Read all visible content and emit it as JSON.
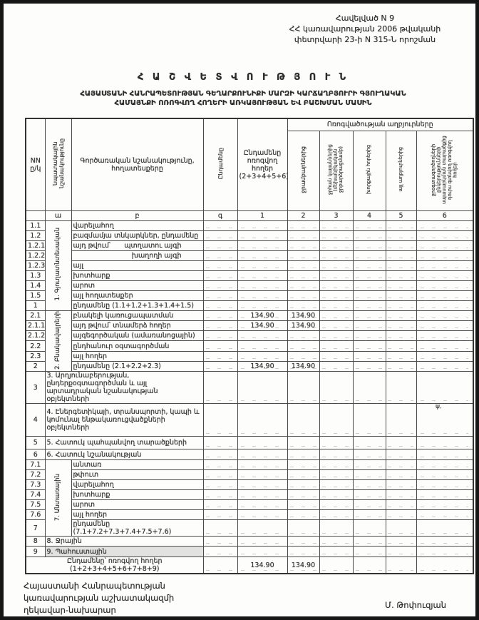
{
  "appendix": {
    "line1": "Հավելված N 9",
    "line2": "ՀՀ կառավարության 2006 թվականի",
    "line3": "փետրվարի 23-ի N 315-Ն որոշման"
  },
  "title": {
    "main": "Հ Ա Շ Վ Ե Տ Վ Ո Ւ Թ Յ Ո Ւ Ն",
    "sub1": "ՀԱՅԱՍՏԱՆԻ ՀԱՆՐԱՊԵՏՈՒԹՅԱՆ ԳԵՂԱՐՔՈՒՆԻՔԻ ՄԱՐԶԻ ԿԱՐՃԱՂԲՅՈՒՐԻ ԳՅՈՒՂԱԿԱՆ",
    "sub2": "ՀԱՄԱՅՆՔԻ ՈՌՈԳՎՈՂ ՀՈՂԵՐԻ ԱՌԿԱՅՈՒԹՅԱՆ ԵՎ ԲԱՇԽՄԱՆ ՄԱՍԻՆ"
  },
  "table": {
    "headers": {
      "nn": "NN ը/կ",
      "designation": "նպատակային նշանակությունը",
      "landtype": "Գործառական նշանակությունը, հողատեսքերը",
      "total": "Ընդամենը",
      "irrigated_total": "Ընդամենը ոռոգվող հողեր (2+3+4+5+6)",
      "sources_group": "Ոռոգվածության աղբյուրները",
      "sources": [
        "ջրամբարներից",
        "ջրհան կայաններից (մեխանիկական ջրբարձրացմամբ)",
        "խորքային հորերից",
        "այլ աղբյուրներից",
        "ջրօգտագործողների ընկերությունների սպասարկման տարածքից դուրս գտնվող ոռոգվող հողեր"
      ]
    },
    "letter_row": [
      "",
      "ա",
      "բ",
      "գ",
      "1",
      "2",
      "3",
      "4",
      "5",
      "6"
    ],
    "rows": [
      {
        "num": "1.1",
        "label": "վարելահող",
        "group": "1. Գյուղատնտեսական",
        "groupSpan": 9
      },
      {
        "num": "1.2",
        "label": "բազմամյա տնկարկներ, ընդամենը"
      },
      {
        "num": "1.2.1",
        "label": "այդ թվում՝",
        "label2": "պտղատու այգի"
      },
      {
        "num": "1.2.2",
        "label": "",
        "label2": "խաղողի այգի"
      },
      {
        "num": "1.2.3",
        "label": "այլ"
      },
      {
        "num": "1.3",
        "label": "խոտհարք"
      },
      {
        "num": "1.4",
        "label": "արոտ"
      },
      {
        "num": "1.5",
        "label": "այլ հողատեսքեր"
      },
      {
        "num": "1",
        "label": "ընդամենը (1.1+1.2+1.3+1.4+1.5)"
      },
      {
        "num": "2.1",
        "label": "բնակելի կառուցապատման",
        "group": "2. Բնակավայրերի",
        "groupSpan": 6,
        "c1": "134.90",
        "c2": "134.90"
      },
      {
        "num": "2.1.1",
        "label": "այդ թվում՝ տնամերձ հողեր",
        "c1": "134.90",
        "c2": "134.90"
      },
      {
        "num": "2.1.2",
        "label": "այգեգործական (ամառանոցային)"
      },
      {
        "num": "2.2",
        "label": "ընդհանուր օգտագործման"
      },
      {
        "num": "2.3",
        "label": "այլ հողեր"
      },
      {
        "num": "2",
        "label": "ընդամենը (2.1+2.2+2.3)",
        "c1": "134.90",
        "c2": "134.90"
      },
      {
        "num": "3",
        "wide": true,
        "h": 40,
        "label": "3. Արդյունաբերության, ընդերքօգտագործման և այլ արտադրական նշանակության օբյեկտների"
      },
      {
        "num": "4",
        "wide": true,
        "h": 46,
        "label": "4. Էներգետիկայի, տրանսպորտի, կապի և կոմունալ ենթակառուցվածքների օբյեկտների"
      },
      {
        "num": "5",
        "wide": true,
        "h": 18,
        "label": "5. Հատուկ պահպանվող տարածքների"
      },
      {
        "num": "6",
        "wide": true,
        "h": 15,
        "label": "6. Հատուկ նշանակության"
      },
      {
        "num": "7.1",
        "label": "անտառ",
        "group": "7. Անտառային",
        "groupSpan": 7
      },
      {
        "num": "7.2",
        "label": "թփուտ"
      },
      {
        "num": "7.3",
        "label": "վարելահող"
      },
      {
        "num": "7.4",
        "label": "խոտհարք"
      },
      {
        "num": "7.5",
        "label": "արոտ"
      },
      {
        "num": "7.6",
        "label": "այլ հողեր"
      },
      {
        "num": "7",
        "label": "ընդամենը (7.1+7.2+7.3+7.4+7.5+7.6)"
      },
      {
        "num": "8",
        "wide": true,
        "label": "8. Ջրային"
      },
      {
        "num": "9",
        "wide": true,
        "h": 15,
        "label": "9. Պահուստային",
        "smudged": true
      },
      {
        "total": true,
        "h": 19,
        "label": "Ընդամենը՝ ոռոգվող հողեր (1+2+3+4+5+6+7+8+9)",
        "c1": "134.90",
        "c2": "134.90"
      }
    ],
    "values_note": "134.90"
  },
  "footer": {
    "left1": "Հայաստանի Հանրապետության",
    "left2": "կառավարության աշխատակազմի",
    "left3": "ղեկավար-նախարար",
    "signature": "Մ. Թոփուզյան"
  },
  "artifact_mark": "ψ."
}
